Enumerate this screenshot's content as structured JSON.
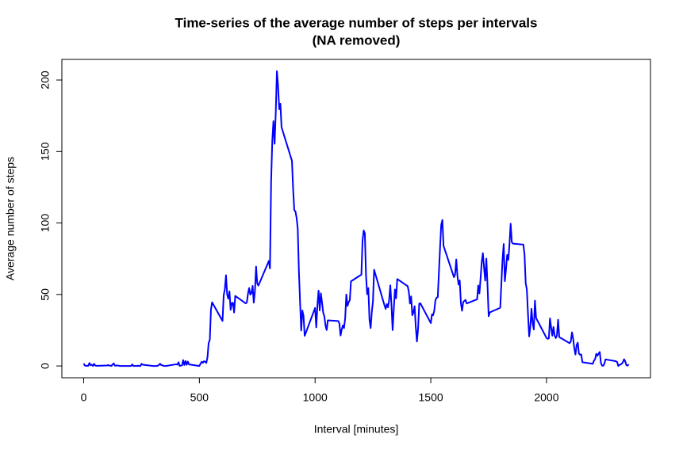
{
  "chart_data": {
    "type": "line",
    "title": "Time-series of the average number of steps per intervals",
    "subtitle": "(NA removed)",
    "x_label": "Interval [minutes]",
    "y_label": "Average number of steps",
    "xlim": [
      -94.2,
      2449.2
    ],
    "xticks": [
      0,
      500,
      1000,
      1500,
      2000
    ],
    "ylim": [
      -8.25,
      214.42
    ],
    "yticks": [
      0,
      50,
      100,
      150,
      200
    ],
    "x": [
      0,
      5,
      10,
      15,
      20,
      25,
      30,
      35,
      40,
      45,
      50,
      55,
      100,
      105,
      110,
      115,
      120,
      125,
      130,
      135,
      140,
      145,
      150,
      155,
      200,
      205,
      210,
      215,
      220,
      225,
      230,
      235,
      240,
      245,
      250,
      255,
      300,
      305,
      310,
      315,
      320,
      325,
      330,
      335,
      340,
      345,
      350,
      355,
      400,
      405,
      410,
      415,
      420,
      425,
      430,
      435,
      440,
      445,
      450,
      455,
      500,
      505,
      510,
      515,
      520,
      525,
      530,
      535,
      540,
      545,
      550,
      555,
      600,
      605,
      610,
      615,
      620,
      625,
      630,
      635,
      640,
      645,
      650,
      655,
      700,
      705,
      710,
      715,
      720,
      725,
      730,
      735,
      740,
      745,
      750,
      755,
      800,
      805,
      810,
      815,
      820,
      825,
      830,
      835,
      840,
      845,
      850,
      855,
      900,
      905,
      910,
      915,
      920,
      925,
      930,
      935,
      940,
      945,
      950,
      955,
      1000,
      1005,
      1010,
      1015,
      1020,
      1025,
      1030,
      1035,
      1040,
      1045,
      1050,
      1055,
      1100,
      1105,
      1110,
      1115,
      1120,
      1125,
      1130,
      1135,
      1140,
      1145,
      1150,
      1155,
      1200,
      1205,
      1210,
      1215,
      1220,
      1225,
      1230,
      1235,
      1240,
      1245,
      1250,
      1255,
      1300,
      1305,
      1310,
      1315,
      1320,
      1325,
      1330,
      1335,
      1340,
      1345,
      1350,
      1355,
      1400,
      1405,
      1410,
      1415,
      1420,
      1425,
      1430,
      1435,
      1440,
      1445,
      1450,
      1455,
      1500,
      1505,
      1510,
      1515,
      1520,
      1525,
      1530,
      1535,
      1540,
      1545,
      1550,
      1555,
      1600,
      1605,
      1610,
      1615,
      1620,
      1625,
      1630,
      1635,
      1640,
      1645,
      1650,
      1655,
      1700,
      1705,
      1710,
      1715,
      1720,
      1725,
      1730,
      1735,
      1740,
      1745,
      1750,
      1755,
      1800,
      1805,
      1810,
      1815,
      1820,
      1825,
      1830,
      1835,
      1840,
      1845,
      1850,
      1855,
      1900,
      1905,
      1910,
      1915,
      1920,
      1925,
      1930,
      1935,
      1940,
      1945,
      1950,
      1955,
      2000,
      2005,
      2010,
      2015,
      2020,
      2025,
      2030,
      2035,
      2040,
      2045,
      2050,
      2055,
      2100,
      2105,
      2110,
      2115,
      2120,
      2125,
      2130,
      2135,
      2140,
      2145,
      2150,
      2155,
      2200,
      2205,
      2210,
      2215,
      2220,
      2225,
      2230,
      2235,
      2240,
      2245,
      2250,
      2255,
      2300,
      2305,
      2310,
      2315,
      2320,
      2325,
      2330,
      2335,
      2340,
      2345,
      2350,
      2355
    ],
    "series": [
      {
        "color": "#0000ff",
        "values": [
          1.7,
          0.3,
          0.1,
          0.2,
          0.1,
          2.1,
          0.5,
          0.9,
          0,
          1.5,
          0.3,
          0.1,
          0.3,
          0.7,
          0.2,
          0.3,
          0,
          1.1,
          1.8,
          0.2,
          0.2,
          0.4,
          0.3,
          0,
          0,
          0,
          1.1,
          0,
          0,
          0.1,
          0,
          0.2,
          0,
          0,
          1.5,
          0.9,
          0,
          0,
          0,
          0,
          0.2,
          0.6,
          1.6,
          0.6,
          0.5,
          0.1,
          0,
          0,
          1.2,
          0.9,
          2.6,
          0,
          0.3,
          0.4,
          4.1,
          0.7,
          3.5,
          0.8,
          3.1,
          1.1,
          0,
          1.6,
          3,
          2.2,
          3.3,
          3,
          2.1,
          6.1,
          16,
          18.3,
          39.5,
          44.5,
          31.5,
          49.3,
          53.8,
          63.5,
          50,
          47.1,
          52.2,
          39.3,
          44,
          44.2,
          37.4,
          49,
          43.8,
          44.4,
          50.5,
          54.5,
          49.9,
          51,
          56,
          44.3,
          52.3,
          69.5,
          57.8,
          56.2,
          73.4,
          68.2,
          129.4,
          157.5,
          171.2,
          155.4,
          177.3,
          206.2,
          195.9,
          179.6,
          183.4,
          167,
          143.5,
          124,
          109.1,
          108.1,
          103.7,
          96,
          66.2,
          45.2,
          24.8,
          38.8,
          35,
          21.1,
          40.6,
          27,
          42.4,
          52.7,
          38.9,
          50.8,
          44.3,
          37.4,
          34.7,
          28.3,
          25.1,
          31.9,
          31.4,
          29.7,
          21.3,
          25.5,
          28.4,
          26.5,
          33.4,
          50,
          42,
          44.6,
          46,
          59.2,
          63.9,
          87.7,
          94.8,
          92.8,
          63.4,
          50.2,
          54.5,
          32.4,
          26.5,
          37.7,
          45.1,
          67.3,
          42.3,
          39.9,
          43.3,
          41,
          46.2,
          56.4,
          42.8,
          25.1,
          40,
          53.5,
          47.3,
          60.8,
          55.8,
          52,
          43.6,
          48.7,
          35.5,
          37.5,
          41.8,
          27.5,
          17.1,
          26.1,
          43.6,
          43.8,
          30,
          36.1,
          35.5,
          38.8,
          46,
          47.8,
          48.1,
          65.3,
          82.9,
          98.7,
          102.1,
          84,
          62.1,
          64.1,
          74.5,
          63.2,
          56.9,
          59.8,
          43.9,
          38.6,
          44.7,
          45.5,
          46.2,
          43.7,
          46.6,
          56.3,
          50.7,
          61.2,
          72.7,
          78.9,
          68.9,
          59.7,
          75.1,
          56.5,
          34.8,
          37.5,
          40.7,
          58,
          74.7,
          85.3,
          59.3,
          67.8,
          77.7,
          74.2,
          85.3,
          99.5,
          86.6,
          85.6,
          84.9,
          77.8,
          58,
          53.4,
          36.3,
          20.7,
          27.4,
          40,
          30.2,
          25.5,
          45.7,
          33.5,
          19.6,
          19,
          19.3,
          33.3,
          26.8,
          21.2,
          27.3,
          21.3,
          19.5,
          21.3,
          32.3,
          20.2,
          15.9,
          17.2,
          23.5,
          19.2,
          12.5,
          8,
          14.7,
          16.3,
          8.7,
          7.8,
          8.1,
          2.6,
          1.5,
          3.7,
          4.8,
          8.5,
          7.1,
          8.7,
          9.8,
          2.2,
          0.3,
          0.1,
          1.6,
          4.6,
          3.3,
          2.8,
          0,
          0.8,
          1,
          1.6,
          2.6,
          4.7,
          3.3,
          0.6,
          0.2,
          1.1
        ]
      }
    ]
  }
}
